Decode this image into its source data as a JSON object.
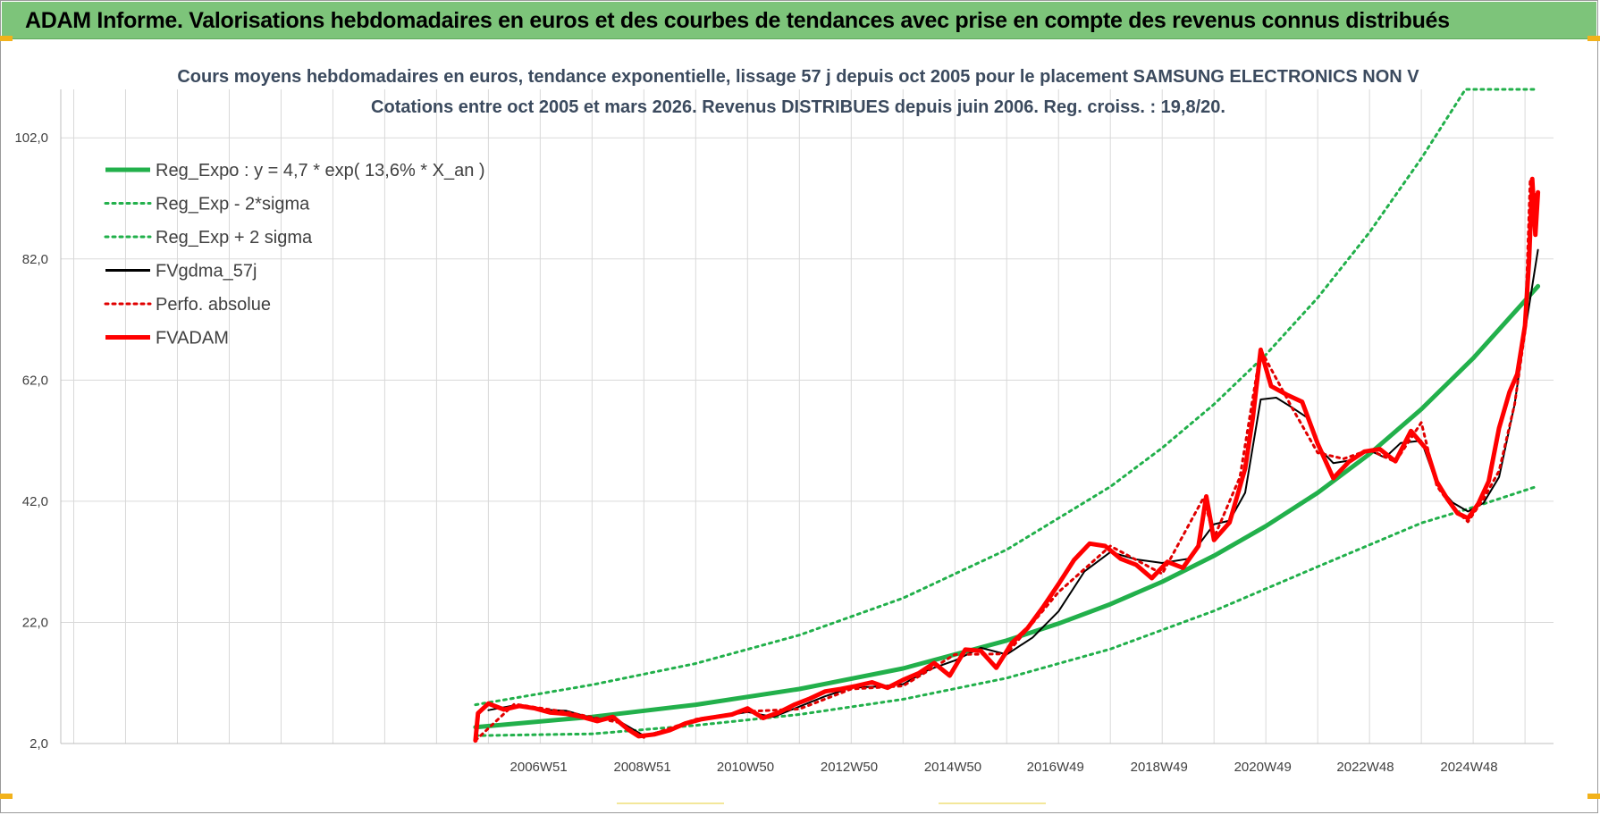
{
  "banner": {
    "title": "ADAM Informe. Valorisations hebdomadaires en euros et des courbes de tendances avec prise en compte des revenus connus distribués"
  },
  "chart_data": {
    "type": "line",
    "title": "Cours moyens hebdomadaires en euros, tendance exponentielle, lissage 57 j depuis oct 2005 pour le placement SAMSUNG  ELECTRONICS NON V",
    "subtitle": "Cotations entre oct 2005 et mars 2026.  Revenus DISTRIBUES depuis juin 2006.  Reg.  croiss. : 19,8/20.",
    "xlabel": "",
    "ylabel": "",
    "y_ticks": [
      "2,0",
      "22,0",
      "42,0",
      "62,0",
      "82,0",
      "102,0"
    ],
    "ylim": [
      2,
      110
    ],
    "x_ticks": [
      {
        "label": "2006W51",
        "x": 2006.97
      },
      {
        "label": "2008W51",
        "x": 2008.97
      },
      {
        "label": "2010W50",
        "x": 2010.96
      },
      {
        "label": "2012W50",
        "x": 2012.96
      },
      {
        "label": "2014W50",
        "x": 2014.96
      },
      {
        "label": "2016W49",
        "x": 2016.94
      },
      {
        "label": "2018W49",
        "x": 2018.94
      },
      {
        "label": "2020W49",
        "x": 2020.94
      },
      {
        "label": "2022W48",
        "x": 2022.92
      },
      {
        "label": "2024W48",
        "x": 2024.92
      }
    ],
    "xlim": [
      1997.75,
      2026.55
    ],
    "grid": true,
    "legend_position": "top-left",
    "series": [
      {
        "name": "Reg_Expo : y = 4,7 * exp( 13,6% *  X_an )",
        "color": "#22b04b",
        "style": "solid-thick",
        "x": [
          2005.75,
          2008,
          2010,
          2012,
          2014,
          2016,
          2017,
          2018,
          2019,
          2020,
          2021,
          2022,
          2023,
          2024,
          2025,
          2026.25
        ],
        "y": [
          4.7,
          6.4,
          8.4,
          11,
          14.4,
          19,
          21.8,
          25,
          28.7,
          33,
          37.9,
          43.4,
          49.8,
          57.2,
          65.6,
          77.5
        ]
      },
      {
        "name": "Reg_Exp - 2*sigma",
        "color": "#22b04b",
        "style": "dotted",
        "x": [
          2005.75,
          2008,
          2010,
          2012,
          2014,
          2016,
          2018,
          2020,
          2022,
          2024,
          2025,
          2026.25
        ],
        "y": [
          3.3,
          3.6,
          5,
          6.8,
          9.3,
          12.8,
          17.6,
          23.9,
          31.2,
          38.4,
          41,
          44.5
        ]
      },
      {
        "name": "Reg_Exp + 2 sigma",
        "color": "#22b04b",
        "style": "dotted",
        "x": [
          2005.75,
          2008,
          2010,
          2012,
          2014,
          2016,
          2018,
          2019,
          2020,
          2021,
          2022,
          2023,
          2024,
          2024.85,
          2025,
          2026.25
        ],
        "y": [
          8.4,
          11.7,
          15.2,
          19.9,
          26,
          34,
          44.4,
          50.8,
          58,
          66.2,
          75.6,
          86.4,
          98.6,
          110,
          110,
          110
        ]
      },
      {
        "name": "FVgdma_57j",
        "color": "#000000",
        "style": "solid",
        "x": [
          2006.0,
          2006.5,
          2007,
          2007.5,
          2008,
          2008.5,
          2009,
          2009.5,
          2010,
          2010.5,
          2011,
          2011.5,
          2012,
          2012.5,
          2013,
          2013.5,
          2014,
          2014.5,
          2015,
          2015.5,
          2016,
          2016.5,
          2017,
          2017.5,
          2018,
          2018.5,
          2019,
          2019.5,
          2020,
          2020.3,
          2020.6,
          2020.9,
          2021.2,
          2021.5,
          2021.8,
          2022,
          2022.3,
          2022.6,
          2023,
          2023.3,
          2023.6,
          2024,
          2024.3,
          2024.6,
          2024.9,
          2025.2,
          2025.5,
          2025.8,
          2026.0,
          2026.25
        ],
        "y": [
          7.5,
          8.3,
          7.6,
          7.4,
          6.2,
          5.8,
          3.3,
          4.4,
          5.8,
          6.5,
          7.2,
          6.4,
          8.1,
          9.8,
          11.2,
          11.4,
          11.8,
          14.2,
          15.7,
          17.8,
          16.7,
          19.5,
          23.8,
          30.4,
          33.6,
          32.4,
          31.8,
          32.5,
          38.2,
          38.8,
          43.4,
          58.8,
          59.1,
          57.5,
          55.8,
          51,
          48.3,
          48.7,
          50.4,
          49.2,
          51.6,
          52,
          44.8,
          41.8,
          40.3,
          41.7,
          46,
          58,
          70,
          83.5
        ]
      },
      {
        "name": "Perfo. absolue",
        "color": "#e00000",
        "style": "dotted",
        "x": [
          2005.75,
          2006.5,
          2007.5,
          2008.5,
          2009,
          2010,
          2011,
          2012,
          2013,
          2014,
          2015,
          2016,
          2017,
          2018,
          2019,
          2019.8,
          2020,
          2020.5,
          2020.9,
          2021.5,
          2022,
          2022.5,
          2023,
          2023.5,
          2024,
          2024.3,
          2024.6,
          2024.9,
          2025.2,
          2025.5,
          2025.8,
          2026.0,
          2026.1,
          2026.25
        ],
        "y": [
          2.5,
          8.5,
          7.2,
          5.5,
          3,
          6,
          7.3,
          7.7,
          11,
          11.5,
          16.7,
          16.8,
          27,
          34.6,
          30,
          42.6,
          36,
          46,
          67,
          57.5,
          50,
          49,
          50.5,
          48.5,
          55,
          44.5,
          41,
          38.6,
          42.4,
          47,
          58,
          70,
          95.2,
          91
        ]
      },
      {
        "name": "FVADAM",
        "color": "#ff0000",
        "style": "solid-thick",
        "x": [
          2005.75,
          2005.8,
          2006.0,
          2006.3,
          2006.6,
          2006.9,
          2007.2,
          2007.5,
          2007.8,
          2008.1,
          2008.4,
          2008.7,
          2008.9,
          2009.2,
          2009.5,
          2009.8,
          2010.1,
          2010.4,
          2010.7,
          2011.0,
          2011.3,
          2011.6,
          2011.9,
          2012.2,
          2012.5,
          2012.8,
          2013.1,
          2013.4,
          2013.7,
          2014.0,
          2014.3,
          2014.6,
          2014.9,
          2015.2,
          2015.5,
          2015.8,
          2016.1,
          2016.4,
          2016.7,
          2017.0,
          2017.3,
          2017.6,
          2017.9,
          2018.2,
          2018.5,
          2018.8,
          2019.1,
          2019.4,
          2019.7,
          2019.85,
          2020.0,
          2020.3,
          2020.6,
          2020.75,
          2020.9,
          2021.1,
          2021.4,
          2021.7,
          2022.0,
          2022.3,
          2022.6,
          2022.9,
          2023.2,
          2023.5,
          2023.8,
          2024.1,
          2024.3,
          2024.5,
          2024.7,
          2024.9,
          2025.1,
          2025.3,
          2025.5,
          2025.7,
          2025.85,
          2026.0,
          2026.08,
          2026.14,
          2026.2,
          2026.25
        ],
        "y": [
          2.5,
          7,
          8.6,
          7.6,
          8.2,
          7.8,
          7.1,
          6.9,
          6.4,
          5.7,
          6.4,
          4.3,
          3.2,
          3.5,
          4.2,
          5.3,
          6,
          6.4,
          6.8,
          7.8,
          6.2,
          7.1,
          8.4,
          9.4,
          10.6,
          11,
          11.5,
          12.1,
          11.2,
          12.5,
          13.6,
          15.3,
          13.2,
          17.5,
          17.3,
          14.5,
          18.6,
          21,
          24.5,
          28.3,
          32.3,
          35,
          34.6,
          32.5,
          31.5,
          29.3,
          32,
          31,
          34.6,
          42.8,
          35.6,
          38.5,
          47.4,
          55.9,
          67,
          61,
          59.6,
          58.4,
          51.5,
          45.8,
          48.5,
          50.2,
          50.6,
          48.6,
          53.6,
          50.6,
          45.2,
          42.4,
          40,
          39.2,
          41.6,
          45.3,
          54.1,
          60,
          63,
          71,
          82,
          95.2,
          86,
          93
        ]
      }
    ]
  }
}
